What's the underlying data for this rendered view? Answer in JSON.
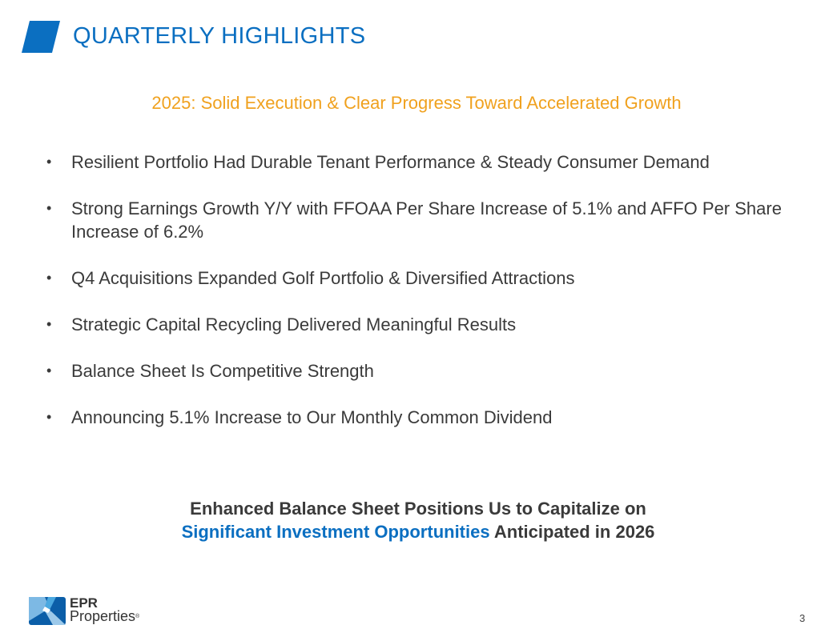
{
  "header": {
    "title": "QUARTERLY HIGHLIGHTS"
  },
  "subtitle": "2025: Solid Execution & Clear Progress Toward Accelerated Growth",
  "bullets": [
    "Resilient Portfolio Had Durable Tenant Performance & Steady Consumer Demand",
    "Strong Earnings Growth Y/Y with FFOAA Per Share Increase of 5.1% and AFFO Per Share Increase of 6.2%",
    "Q4 Acquisitions Expanded Golf Portfolio & Diversified Attractions",
    "Strategic Capital Recycling Delivered Meaningful Results",
    "Balance Sheet Is Competitive Strength",
    "Announcing 5.1% Increase to Our Monthly Common Dividend"
  ],
  "bullet_glyph": "•",
  "closing": {
    "line1": "Enhanced Balance Sheet Positions Us to Capitalize on",
    "highlight": "Significant Investment Opportunities",
    "line2_rest": " Anticipated in 2026"
  },
  "logo": {
    "line1": "EPR",
    "line2": "Properties",
    "mark": "®"
  },
  "page_number": "3",
  "colors": {
    "brand_blue": "#0B6FC1",
    "accent_orange": "#F0A11E",
    "text": "#3A3A3A"
  }
}
